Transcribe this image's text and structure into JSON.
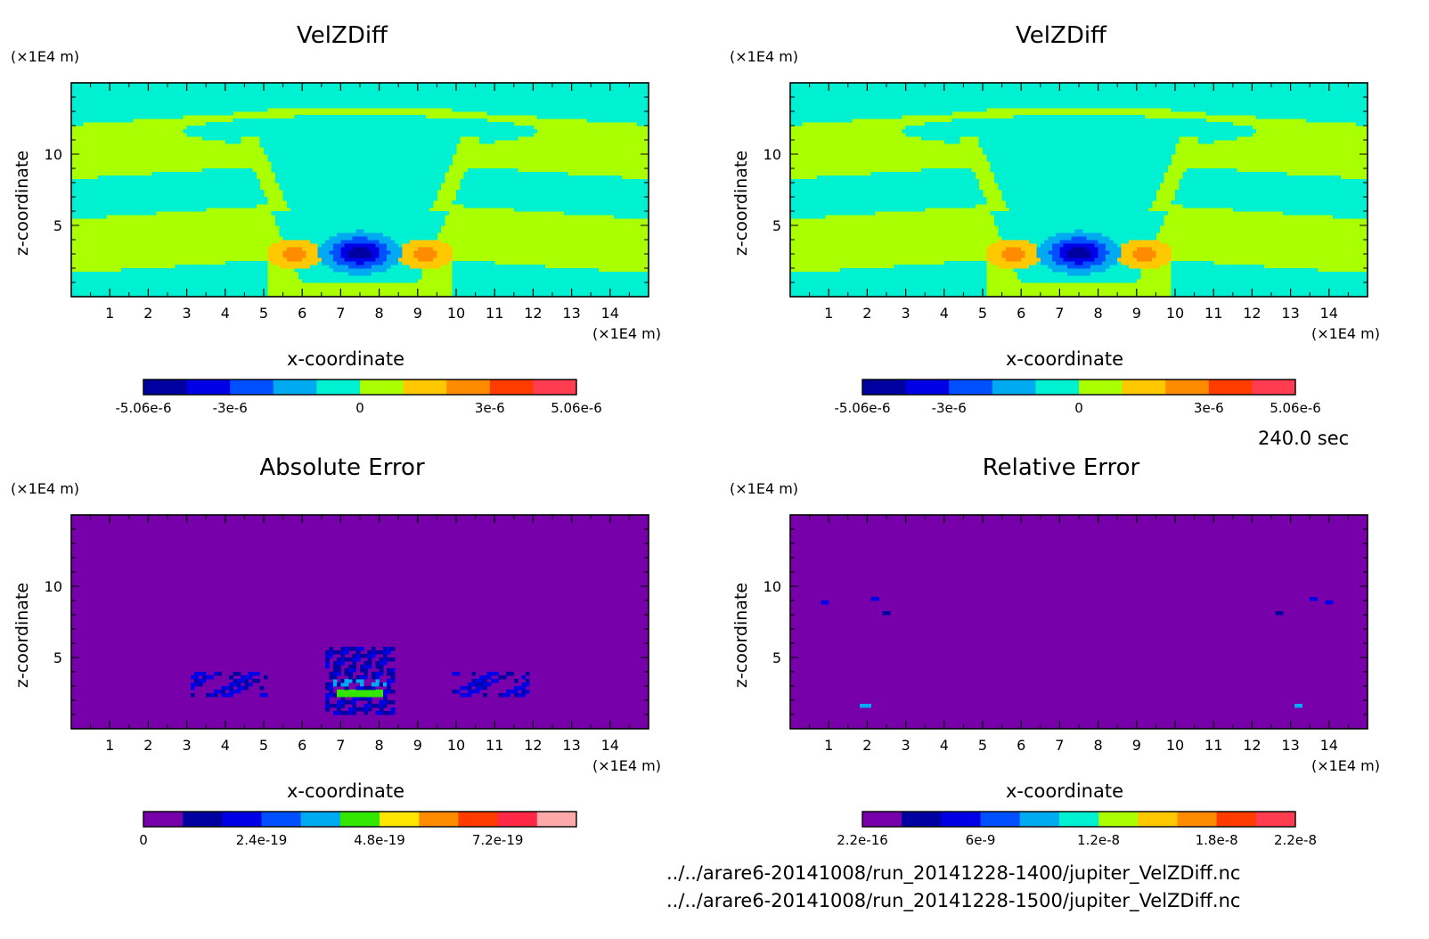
{
  "time_label": "240.0 sec",
  "file_paths": [
    "../../arare6-20141008/run_20141228-1400/jupiter_VelZDiff.nc",
    "../../arare6-20141008/run_20141228-1500/jupiter_VelZDiff.nc"
  ],
  "chart_data": [
    {
      "type": "heatmap",
      "title": "VelZDiff",
      "xlabel": "x-coordinate",
      "ylabel": "z-coordinate",
      "x_unit": "(×1E4 m)",
      "y_unit": "(×1E4 m)",
      "xlim": [
        0,
        15
      ],
      "ylim": [
        0,
        15
      ],
      "x_ticks": [
        1,
        2,
        3,
        4,
        5,
        6,
        7,
        8,
        9,
        10,
        11,
        12,
        13,
        14
      ],
      "y_ticks": [
        5,
        10
      ],
      "colorbar": {
        "colors": [
          "#0000a0",
          "#0000e6",
          "#0050ff",
          "#00aaf0",
          "#00f0d2",
          "#aaff00",
          "#ffc800",
          "#ff8c00",
          "#ff3c00",
          "#ff3c50"
        ],
        "tick_labels": [
          "-5.06e-6",
          "-3e-6",
          "0",
          "3e-6",
          "5.06e-6"
        ],
        "tick_positions": [
          0,
          0.2,
          0.5,
          0.8,
          1
        ]
      },
      "field": "velz"
    },
    {
      "type": "heatmap",
      "title": "VelZDiff",
      "xlabel": "x-coordinate",
      "ylabel": "z-coordinate",
      "x_unit": "(×1E4 m)",
      "y_unit": "(×1E4 m)",
      "xlim": [
        0,
        15
      ],
      "ylim": [
        0,
        15
      ],
      "x_ticks": [
        1,
        2,
        3,
        4,
        5,
        6,
        7,
        8,
        9,
        10,
        11,
        12,
        13,
        14
      ],
      "y_ticks": [
        5,
        10
      ],
      "colorbar": {
        "colors": [
          "#0000a0",
          "#0000e6",
          "#0050ff",
          "#00aaf0",
          "#00f0d2",
          "#aaff00",
          "#ffc800",
          "#ff8c00",
          "#ff3c00",
          "#ff3c50"
        ],
        "tick_labels": [
          "-5.06e-6",
          "-3e-6",
          "0",
          "3e-6",
          "5.06e-6"
        ],
        "tick_positions": [
          0,
          0.2,
          0.5,
          0.8,
          1
        ]
      },
      "field": "velz"
    },
    {
      "type": "heatmap",
      "title": "Absolute Error",
      "xlabel": "x-coordinate",
      "ylabel": "z-coordinate",
      "x_unit": "(×1E4 m)",
      "y_unit": "(×1E4 m)",
      "xlim": [
        0,
        15
      ],
      "ylim": [
        0,
        15
      ],
      "x_ticks": [
        1,
        2,
        3,
        4,
        5,
        6,
        7,
        8,
        9,
        10,
        11,
        12,
        13,
        14
      ],
      "y_ticks": [
        5,
        10
      ],
      "colorbar": {
        "colors": [
          "#7800aa",
          "#0000a0",
          "#0000e6",
          "#0050ff",
          "#00aaf0",
          "#32e600",
          "#ffe600",
          "#ff8c00",
          "#ff3c00",
          "#ff2846",
          "#ffaaaa"
        ],
        "tick_labels": [
          "0",
          "2.4e-19",
          "4.8e-19",
          "7.2e-19"
        ],
        "tick_positions": [
          0,
          0.2727,
          0.5454,
          0.8182
        ]
      },
      "field": "abserr"
    },
    {
      "type": "heatmap",
      "title": "Relative Error",
      "xlabel": "x-coordinate",
      "ylabel": "z-coordinate",
      "x_unit": "(×1E4 m)",
      "y_unit": "(×1E4 m)",
      "xlim": [
        0,
        15
      ],
      "ylim": [
        0,
        15
      ],
      "x_ticks": [
        1,
        2,
        3,
        4,
        5,
        6,
        7,
        8,
        9,
        10,
        11,
        12,
        13,
        14
      ],
      "y_ticks": [
        5,
        10
      ],
      "colorbar": {
        "colors": [
          "#7800aa",
          "#0000a0",
          "#0000e6",
          "#0050ff",
          "#00aaf0",
          "#00f0d2",
          "#aaff00",
          "#ffc800",
          "#ff8c00",
          "#ff3c00",
          "#ff3c50"
        ],
        "tick_labels": [
          "2.2e-16",
          "6e-9",
          "1.2e-8",
          "1.8e-8",
          "2.2e-8"
        ],
        "tick_positions": [
          0,
          0.2727,
          0.5454,
          0.8182,
          1
        ]
      },
      "field": "relerr"
    }
  ]
}
